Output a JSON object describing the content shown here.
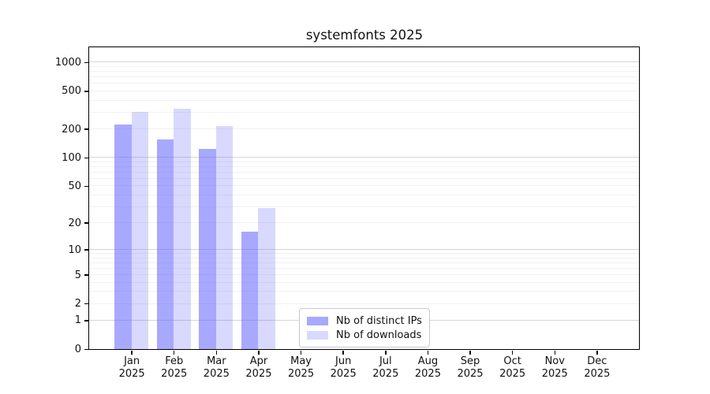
{
  "title": "systemfonts 2025",
  "chart_data": {
    "type": "bar",
    "title": "systemfonts 2025",
    "scale": "log1p",
    "grid": "on",
    "legend_position": "inside-bottom-center",
    "categories": [
      "Jan",
      "Feb",
      "Mar",
      "Apr",
      "May",
      "Jun",
      "Jul",
      "Aug",
      "Sep",
      "Oct",
      "Nov",
      "Dec"
    ],
    "year": "2025",
    "series": [
      {
        "name": "Nb of distinct IPs",
        "color": "rgba(102,102,255,0.57)",
        "values": [
          221,
          156,
          123,
          16,
          0,
          0,
          0,
          0,
          0,
          0,
          0,
          0
        ]
      },
      {
        "name": "Nb of downloads",
        "color": "rgba(102,102,255,0.25)",
        "values": [
          303,
          325,
          214,
          29,
          0,
          0,
          0,
          0,
          0,
          0,
          0,
          0
        ]
      }
    ],
    "y_ticks": [
      0,
      1,
      2,
      5,
      10,
      20,
      50,
      100,
      200,
      500,
      1000
    ],
    "y_major_gridlines": [
      1,
      10,
      100,
      1000
    ],
    "y_minor_gridlines": [
      2,
      3,
      4,
      5,
      6,
      7,
      8,
      9,
      20,
      30,
      40,
      50,
      60,
      70,
      80,
      90,
      200,
      300,
      400,
      500,
      600,
      700,
      800,
      900
    ],
    "ylim": [
      0,
      1430
    ]
  },
  "colors": {
    "axis": "#000000",
    "major_grid": "#d5d5d5",
    "minor_grid": "#f1f1f1",
    "background": "#ffffff",
    "bar_base": "#6666ff"
  }
}
